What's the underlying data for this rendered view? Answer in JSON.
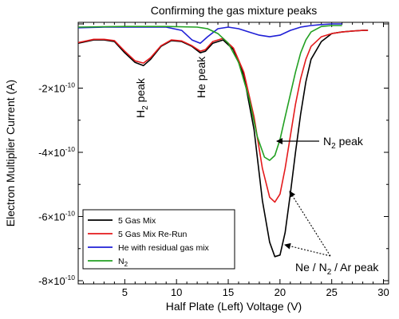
{
  "chart_data": {
    "type": "line",
    "title": "Confirming the gas mixture peaks",
    "xlabel": "Half Plate (Left) Voltage (V)",
    "ylabel": "Electron Multiplier Current (A)",
    "xlim": [
      0.5,
      30.5
    ],
    "ylim": [
      -8.1e-10,
      5e-12
    ],
    "x_ticks": [
      5,
      10,
      15,
      20,
      25,
      30
    ],
    "y_ticks": [
      {
        "value": -2e-10,
        "mantissa": "-2",
        "exponent": "-10"
      },
      {
        "value": -4e-10,
        "mantissa": "-4",
        "exponent": "-10"
      },
      {
        "value": -6e-10,
        "mantissa": "-6",
        "exponent": "-10"
      },
      {
        "value": -8e-10,
        "mantissa": "-8",
        "exponent": "-10"
      }
    ],
    "grid": false,
    "legend_position": "bottom-left",
    "series": [
      {
        "name": "5 Gas Mix",
        "color": "#000000",
        "x": [
          0.5,
          2,
          3,
          4,
          5,
          6,
          6.8,
          7.5,
          8.5,
          9.5,
          10.5,
          11.5,
          12.3,
          12.8,
          13.5,
          14.5,
          15.5,
          16.5,
          17.5,
          18.3,
          19,
          19.5,
          20,
          20.5,
          21,
          21.5,
          22,
          22.5,
          23,
          24,
          25,
          26,
          27,
          28,
          28.5
        ],
        "y": [
          -6e-11,
          -5e-11,
          -5e-11,
          -5.5e-11,
          -9e-11,
          -1.2e-10,
          -1.3e-10,
          -1.1e-10,
          -7e-11,
          -5.2e-11,
          -5.5e-11,
          -7e-11,
          -9e-11,
          -8.5e-11,
          -6e-11,
          -5e-11,
          -8e-11,
          -1.6e-10,
          -3.3e-10,
          -5.5e-10,
          -6.8e-10,
          -7.25e-10,
          -7.2e-10,
          -6.5e-10,
          -5.3e-10,
          -4e-10,
          -2.8e-10,
          -1.8e-10,
          -1.1e-10,
          -5.5e-11,
          -3e-11,
          -2.5e-11,
          -2.2e-11,
          -2e-11,
          -2e-11
        ]
      },
      {
        "name": "5 Gas Mix Re-Run",
        "color": "#e41a1c",
        "x": [
          0.5,
          2,
          3,
          4,
          5,
          6,
          6.8,
          7.5,
          8.5,
          9.5,
          10.5,
          11.5,
          12.3,
          12.8,
          13.5,
          14.5,
          15.5,
          16.5,
          17.5,
          18.3,
          19,
          19.5,
          20,
          20.5,
          21,
          21.5,
          22,
          22.5,
          23,
          24,
          25,
          26,
          27,
          28,
          28.5
        ],
        "y": [
          -5.8e-11,
          -4.8e-11,
          -4.8e-11,
          -5.2e-11,
          -8.5e-11,
          -1.15e-10,
          -1.22e-10,
          -1.05e-10,
          -6.8e-11,
          -5e-11,
          -5.3e-11,
          -6.8e-11,
          -8.5e-11,
          -8e-11,
          -5.5e-11,
          -4.5e-11,
          -7.5e-11,
          -1.5e-10,
          -2.9e-10,
          -4.5e-10,
          -5.4e-10,
          -5.55e-10,
          -5.3e-10,
          -4.5e-10,
          -3.5e-10,
          -2.5e-10,
          -1.7e-10,
          -1.1e-10,
          -7e-11,
          -4e-11,
          -3e-11,
          -2.5e-11,
          -2.2e-11,
          -2e-11,
          -2e-11
        ]
      },
      {
        "name": "He with residual gas mix",
        "color": "#1f1fd6",
        "x": [
          0.5,
          3,
          6,
          9,
          10.5,
          11.5,
          12.3,
          13,
          14,
          15,
          16,
          17,
          18,
          19,
          20,
          21,
          22,
          23,
          24,
          25,
          26
        ],
        "y": [
          -1.2e-11,
          -1e-11,
          -1e-11,
          -1e-11,
          -2e-11,
          -5e-11,
          -6e-11,
          -4e-11,
          -1.5e-11,
          -1e-11,
          -1.5e-11,
          -2.5e-11,
          -3.5e-11,
          -4e-11,
          -3.5e-11,
          -2e-11,
          -1e-11,
          -5e-12,
          -2e-12,
          0.0,
          0.0
        ]
      },
      {
        "name": "N",
        "name_subscript": "2",
        "color": "#22a022",
        "x": [
          0.5,
          5,
          9,
          12,
          13,
          14,
          15,
          16,
          17,
          17.8,
          18.5,
          19,
          19.5,
          20,
          20.5,
          21,
          21.5,
          22,
          22.5,
          23,
          24,
          25,
          26
        ],
        "y": [
          -1e-11,
          -8e-12,
          -8e-12,
          -1e-11,
          -1.5e-11,
          -3e-11,
          -6e-11,
          -1.2e-10,
          -2.3e-10,
          -3.5e-10,
          -4.15e-10,
          -4.25e-10,
          -4.1e-10,
          -3.6e-10,
          -2.9e-10,
          -2.2e-10,
          -1.5e-10,
          -9e-11,
          -5e-11,
          -2.5e-11,
          -8e-12,
          -5e-12,
          -5e-12
        ]
      }
    ],
    "annotations": [
      {
        "id": "h2",
        "text": "H",
        "subscript": "2",
        "suffix": " peak",
        "rotation": "vertical"
      },
      {
        "id": "he",
        "text": "He peak",
        "rotation": "vertical"
      },
      {
        "id": "n2",
        "text": "N",
        "subscript": "2",
        "suffix": " peak"
      },
      {
        "id": "mix",
        "text": "Ne / N",
        "subscript": "2",
        "suffix": " / Ar peak"
      }
    ]
  }
}
